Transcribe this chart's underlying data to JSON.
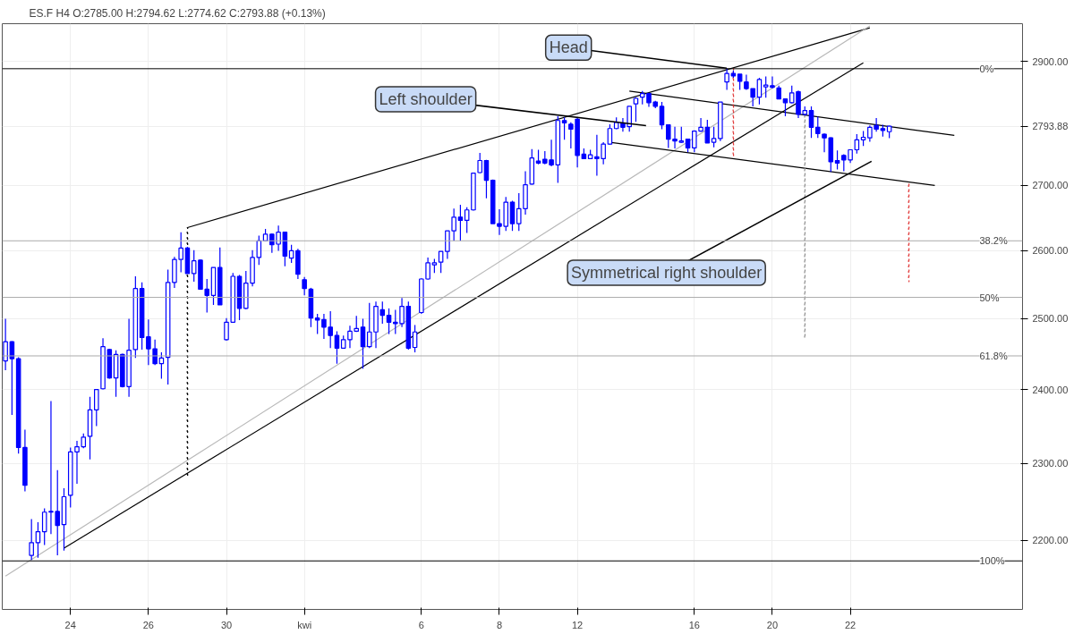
{
  "chart_data": {
    "type": "candlestick",
    "title": "ES.F  H4  O:2785.00  H:2794.62  L:2774.62  C:2793.88  (+0.13%)",
    "color": "#0000ff",
    "categories": [
      null,
      null,
      null,
      null,
      null,
      null,
      null,
      null,
      null,
      null,
      "24",
      null,
      null,
      null,
      null,
      null,
      null,
      null,
      null,
      null,
      null,
      null,
      "26",
      null,
      null,
      null,
      null,
      null,
      null,
      null,
      null,
      null,
      null,
      null,
      "30",
      null,
      null,
      null,
      null,
      null,
      null,
      null,
      null,
      null,
      null,
      null,
      "kwi",
      null,
      null,
      null,
      null,
      null,
      null,
      null,
      null,
      null,
      null,
      null,
      null,
      null,
      null,
      null,
      null,
      null,
      "6",
      null,
      null,
      null,
      null,
      null,
      null,
      null,
      null,
      null,
      null,
      null,
      "8",
      null,
      null,
      null,
      null,
      null,
      null,
      null,
      null,
      null,
      null,
      null,
      "12",
      null,
      null,
      null,
      null,
      null,
      null,
      null,
      null,
      null,
      null,
      null,
      null,
      null,
      null,
      null,
      null,
      null,
      "16",
      null,
      null,
      null,
      null,
      null,
      null,
      null,
      null,
      null,
      null,
      null,
      "20",
      null,
      null,
      null,
      null,
      null,
      null,
      null,
      null,
      null,
      null,
      null,
      "22",
      null,
      null,
      null,
      null,
      null,
      null,
      null,
      null,
      null,
      null,
      null,
      null,
      null,
      null,
      null,
      null,
      null,
      null,
      null,
      null,
      null,
      null,
      null,
      null,
      null,
      null
    ],
    "ohlc": [
      [
        2440,
        2500,
        2427,
        2467
      ],
      [
        2467,
        2468,
        2365,
        2443
      ],
      [
        2443,
        2445,
        2313,
        2321
      ],
      [
        2321,
        2345,
        2263,
        2271
      ],
      [
        2181,
        2227,
        2175,
        2197
      ],
      [
        2197,
        2223,
        2178,
        2211
      ],
      [
        2211,
        2241,
        2194,
        2236
      ],
      [
        2236,
        2384,
        2208,
        2237
      ],
      [
        2237,
        2291,
        2181,
        2219
      ],
      [
        2220,
        2267,
        2187,
        2256
      ],
      [
        2258,
        2321,
        2242,
        2315
      ],
      [
        2315,
        2330,
        2273,
        2322
      ],
      [
        2322,
        2340,
        2320,
        2335
      ],
      [
        2336,
        2390,
        2305,
        2372
      ],
      [
        2372,
        2400,
        2350,
        2400
      ],
      [
        2401,
        2472,
        2400,
        2460
      ],
      [
        2456,
        2457,
        2415,
        2416
      ],
      [
        2416,
        2455,
        2390,
        2449
      ],
      [
        2449,
        2450,
        2403,
        2404
      ],
      [
        2404,
        2500,
        2390,
        2455
      ],
      [
        2456,
        2562,
        2444,
        2544
      ],
      [
        2544,
        2553,
        2456,
        2473
      ],
      [
        2474,
        2499,
        2434,
        2457
      ],
      [
        2457,
        2470,
        2434,
        2436
      ],
      [
        2436,
        2452,
        2415,
        2444
      ],
      [
        2445,
        2572,
        2407,
        2553
      ],
      [
        2553,
        2591,
        2545,
        2587
      ],
      [
        2587,
        2628,
        2568,
        2604
      ],
      [
        2604,
        2606,
        2566,
        2566
      ],
      [
        2566,
        2601,
        2554,
        2585
      ],
      [
        2586,
        2587,
        2543,
        2543
      ],
      [
        2543,
        2558,
        2509,
        2534
      ],
      [
        2534,
        2575,
        2520,
        2575
      ],
      [
        2575,
        2605,
        2520,
        2520
      ],
      [
        2470,
        2501,
        2469,
        2495
      ],
      [
        2495,
        2567,
        2494,
        2562
      ],
      [
        2562,
        2564,
        2498,
        2515
      ],
      [
        2515,
        2570,
        2514,
        2552
      ],
      [
        2552,
        2601,
        2547,
        2590
      ],
      [
        2590,
        2623,
        2579,
        2615
      ],
      [
        2615,
        2633,
        2614,
        2625
      ],
      [
        2625,
        2626,
        2597,
        2609
      ],
      [
        2610,
        2638,
        2600,
        2628
      ],
      [
        2628,
        2629,
        2577,
        2592
      ],
      [
        2589,
        2609,
        2582,
        2600
      ],
      [
        2600,
        2603,
        2558,
        2565
      ],
      [
        2557,
        2561,
        2534,
        2544
      ],
      [
        2543,
        2545,
        2488,
        2501
      ],
      [
        2501,
        2507,
        2478,
        2498
      ],
      [
        2499,
        2507,
        2471,
        2488
      ],
      [
        2488,
        2511,
        2458,
        2476
      ],
      [
        2476,
        2482,
        2436,
        2458
      ],
      [
        2458,
        2476,
        2458,
        2470
      ],
      [
        2470,
        2490,
        2458,
        2482
      ],
      [
        2482,
        2504,
        2481,
        2486
      ],
      [
        2488,
        2500,
        2429,
        2460
      ],
      [
        2460,
        2523,
        2458,
        2481
      ],
      [
        2481,
        2525,
        2458,
        2518
      ],
      [
        2513,
        2525,
        2493,
        2505
      ],
      [
        2505,
        2515,
        2478,
        2495
      ],
      [
        2495,
        2513,
        2478,
        2493
      ],
      [
        2493,
        2530,
        2488,
        2518
      ],
      [
        2518,
        2525,
        2456,
        2458
      ],
      [
        2459,
        2491,
        2452,
        2481
      ],
      [
        2509,
        2559,
        2507,
        2558
      ],
      [
        2558,
        2590,
        2557,
        2582
      ],
      [
        2579,
        2588,
        2567,
        2582
      ],
      [
        2583,
        2599,
        2567,
        2599
      ],
      [
        2599,
        2630,
        2588,
        2630
      ],
      [
        2630,
        2664,
        2615,
        2651
      ],
      [
        2651,
        2670,
        2615,
        2646
      ],
      [
        2646,
        2666,
        2627,
        2662
      ],
      [
        2662,
        2720,
        2661,
        2719
      ],
      [
        2720,
        2751,
        2719,
        2739
      ],
      [
        2739,
        2740,
        2680,
        2708
      ],
      [
        2708,
        2709,
        2641,
        2641
      ],
      [
        2641,
        2663,
        2624,
        2637
      ],
      [
        2637,
        2682,
        2630,
        2674
      ],
      [
        2674,
        2676,
        2630,
        2641
      ],
      [
        2641,
        2688,
        2630,
        2664
      ],
      [
        2664,
        2722,
        2655,
        2701
      ],
      [
        2702,
        2757,
        2701,
        2743
      ],
      [
        2738,
        2756,
        2733,
        2735
      ],
      [
        2741,
        2754,
        2733,
        2735
      ],
      [
        2740,
        2772,
        2730,
        2732
      ],
      [
        2732,
        2810,
        2704,
        2803
      ],
      [
        2803,
        2808,
        2772,
        2799
      ],
      [
        2797,
        2800,
        2758,
        2789
      ],
      [
        2805,
        2807,
        2728,
        2747
      ],
      [
        2749,
        2758,
        2741,
        2742
      ],
      [
        2742,
        2756,
        2741,
        2748
      ],
      [
        2745,
        2780,
        2715,
        2742
      ],
      [
        2742,
        2768,
        2733,
        2765
      ],
      [
        2765,
        2797,
        2764,
        2790
      ],
      [
        2790,
        2808,
        2789,
        2800
      ],
      [
        2799,
        2807,
        2785,
        2792
      ],
      [
        2793,
        2826,
        2785,
        2826
      ],
      [
        2830,
        2841,
        2801,
        2839
      ],
      [
        2841,
        2851,
        2829,
        2847
      ],
      [
        2847,
        2848,
        2825,
        2832
      ],
      [
        2833,
        2835,
        2823,
        2826
      ],
      [
        2826,
        2833,
        2789,
        2796
      ],
      [
        2796,
        2797,
        2759,
        2773
      ],
      [
        2773,
        2793,
        2758,
        2770
      ],
      [
        2768,
        2793,
        2767,
        2770
      ],
      [
        2773,
        2774,
        2752,
        2759
      ],
      [
        2759,
        2787,
        2752,
        2786
      ],
      [
        2786,
        2807,
        2785,
        2792
      ],
      [
        2792,
        2804,
        2767,
        2767
      ],
      [
        2768,
        2793,
        2760,
        2774
      ],
      [
        2774,
        2833,
        2770,
        2833
      ],
      [
        2866,
        2889,
        2853,
        2880
      ],
      [
        2880,
        2885,
        2873,
        2876
      ],
      [
        2879,
        2879,
        2853,
        2867
      ],
      [
        2866,
        2878,
        2853,
        2855
      ],
      [
        2855,
        2855,
        2826,
        2841
      ],
      [
        2841,
        2873,
        2829,
        2870
      ],
      [
        2858,
        2875,
        2840,
        2861
      ],
      [
        2860,
        2875,
        2855,
        2857
      ],
      [
        2856,
        2860,
        2838,
        2838
      ],
      [
        2838,
        2839,
        2810,
        2832
      ],
      [
        2832,
        2860,
        2831,
        2848
      ],
      [
        2850,
        2852,
        2807,
        2813
      ],
      [
        2813,
        2826,
        2811,
        2819
      ],
      [
        2819,
        2826,
        2775,
        2792
      ],
      [
        2792,
        2809,
        2775,
        2782
      ],
      [
        2781,
        2782,
        2752,
        2775
      ],
      [
        2775,
        2776,
        2721,
        2737
      ],
      [
        2739,
        2755,
        2725,
        2735
      ],
      [
        2747,
        2749,
        2722,
        2740
      ],
      [
        2740,
        2756,
        2735,
        2756
      ],
      [
        2756,
        2781,
        2750,
        2772
      ],
      [
        2772,
        2786,
        2762,
        2776
      ],
      [
        2775,
        2795,
        2769,
        2792
      ],
      [
        2795,
        2807,
        2785,
        2789
      ],
      [
        2790,
        2796,
        2777,
        2787
      ],
      [
        2785,
        2794.62,
        2774.62,
        2793.88
      ],
      null,
      null,
      null,
      null,
      null,
      null,
      null,
      null,
      null,
      null,
      null,
      null,
      null,
      null,
      null,
      null,
      null,
      null,
      null,
      null
    ],
    "series": [
      {
        "type": "line",
        "color": "#000000",
        "line_style": "solid",
        "values": [
          null,
          null,
          null,
          null,
          null,
          null,
          null,
          null,
          null,
          null,
          null,
          null,
          null,
          null,
          null,
          null,
          null,
          null,
          null,
          null,
          null,
          null,
          null,
          null,
          null,
          null,
          null,
          null,
          2635,
          null,
          null,
          null,
          null,
          null,
          null,
          null,
          null,
          null,
          null,
          null,
          null,
          null,
          null,
          null,
          null,
          null,
          null,
          null,
          null,
          null,
          null,
          null,
          null,
          null,
          null,
          null,
          null,
          null,
          null,
          null,
          null,
          null,
          null,
          null,
          null,
          null,
          null,
          null,
          null,
          null,
          null,
          null,
          null,
          null,
          null,
          null,
          null,
          null,
          null,
          null,
          null,
          null,
          null,
          null,
          null,
          null,
          null,
          null,
          null,
          null,
          null,
          null,
          null,
          null,
          null,
          null,
          null,
          null,
          null,
          null,
          null,
          null,
          null,
          null,
          null,
          null,
          null,
          null,
          null,
          null,
          null,
          null,
          null,
          null,
          null,
          null,
          null,
          null,
          null,
          null,
          null,
          null,
          null,
          null,
          null,
          null,
          null,
          null,
          null,
          null,
          null,
          null,
          null,
          2957,
          null,
          null,
          null,
          null,
          null,
          null,
          null,
          null,
          null,
          null,
          null,
          null,
          null,
          null,
          null,
          null,
          null,
          null,
          null,
          null,
          null,
          null,
          null
        ]
      },
      {
        "type": "line",
        "color": "#000000",
        "line_style": "solid",
        "values": [
          null,
          null,
          null,
          null,
          null,
          null,
          null,
          null,
          null,
          2190,
          null,
          null,
          null,
          null,
          null,
          null,
          null,
          null,
          null,
          null,
          null,
          null,
          null,
          null,
          null,
          null,
          null,
          null,
          null,
          null,
          null,
          null,
          null,
          null,
          null,
          null,
          null,
          null,
          null,
          null,
          null,
          null,
          null,
          null,
          null,
          null,
          null,
          null,
          null,
          null,
          null,
          null,
          null,
          null,
          null,
          null,
          null,
          null,
          null,
          null,
          null,
          null,
          null,
          null,
          null,
          null,
          null,
          null,
          null,
          null,
          null,
          null,
          null,
          null,
          null,
          null,
          null,
          null,
          null,
          null,
          null,
          null,
          null,
          null,
          null,
          null,
          null,
          null,
          null,
          null,
          null,
          null,
          null,
          null,
          null,
          null,
          null,
          null,
          null,
          null,
          null,
          null,
          null,
          null,
          null,
          null,
          null,
          null,
          null,
          null,
          null,
          null,
          null,
          null,
          null,
          null,
          null,
          null,
          null,
          null,
          null,
          null,
          null,
          null,
          null,
          null,
          null,
          null,
          null,
          null,
          null,
          null,
          2898,
          null,
          null,
          null,
          null,
          null,
          null,
          null,
          null,
          null,
          null,
          null,
          null,
          null,
          null,
          null,
          null,
          null,
          null,
          null,
          null,
          null,
          null,
          null,
          null
        ]
      },
      {
        "type": "line",
        "color": "#b8b8b8",
        "line_style": "solid",
        "values": [
          2155,
          null,
          null,
          null,
          null,
          null,
          null,
          null,
          null,
          null,
          null,
          null,
          null,
          null,
          null,
          null,
          null,
          null,
          null,
          null,
          null,
          null,
          null,
          null,
          null,
          null,
          null,
          null,
          null,
          null,
          null,
          null,
          null,
          null,
          null,
          null,
          null,
          null,
          null,
          null,
          null,
          null,
          null,
          null,
          null,
          null,
          null,
          null,
          null,
          null,
          null,
          null,
          null,
          null,
          null,
          null,
          null,
          null,
          null,
          null,
          null,
          null,
          null,
          null,
          null,
          null,
          null,
          null,
          null,
          null,
          null,
          null,
          null,
          null,
          null,
          null,
          null,
          null,
          null,
          null,
          null,
          null,
          null,
          null,
          null,
          null,
          null,
          null,
          null,
          null,
          null,
          null,
          null,
          null,
          null,
          null,
          null,
          null,
          null,
          null,
          null,
          null,
          null,
          null,
          null,
          null,
          null,
          null,
          null,
          null,
          null,
          null,
          null,
          null,
          null,
          null,
          null,
          null,
          null,
          null,
          null,
          null,
          null,
          null,
          null,
          null,
          null,
          null,
          null,
          null,
          null,
          null,
          null,
          2960,
          null,
          null,
          null,
          null,
          null,
          null,
          null,
          null,
          null,
          null,
          null,
          null,
          null,
          null,
          null,
          null,
          null,
          null,
          null,
          null,
          null,
          null,
          null
        ]
      },
      {
        "type": "line",
        "color": "#000000",
        "line_style": "solid",
        "values": [
          null,
          null,
          null,
          null,
          null,
          null,
          null,
          null,
          null,
          null,
          null,
          null,
          null,
          null,
          null,
          null,
          null,
          null,
          null,
          null,
          null,
          null,
          null,
          null,
          null,
          null,
          null,
          null,
          null,
          null,
          null,
          null,
          null,
          null,
          null,
          null,
          null,
          null,
          null,
          null,
          null,
          null,
          null,
          null,
          null,
          null,
          null,
          null,
          null,
          null,
          null,
          null,
          null,
          null,
          null,
          null,
          null,
          null,
          null,
          null,
          null,
          null,
          null,
          null,
          null,
          null,
          null,
          null,
          null,
          null,
          null,
          null,
          null,
          null,
          null,
          null,
          null,
          null,
          null,
          null,
          null,
          null,
          null,
          null,
          null,
          null,
          null,
          null,
          null,
          null,
          null,
          null,
          null,
          null,
          null,
          null,
          2851,
          null,
          null,
          null,
          null,
          null,
          null,
          null,
          null,
          null,
          null,
          null,
          null,
          null,
          null,
          null,
          null,
          null,
          null,
          null,
          null,
          null,
          null,
          null,
          null,
          null,
          null,
          null,
          null,
          null,
          null,
          null,
          null,
          null,
          null,
          null,
          null,
          null,
          null,
          null,
          null,
          null,
          null,
          null,
          null,
          null,
          null,
          null,
          null,
          null,
          2779,
          null,
          null,
          null,
          null,
          null,
          null,
          null,
          null,
          null,
          null
        ]
      },
      {
        "type": "line",
        "color": "#000000",
        "line_style": "solid",
        "values": [
          null,
          null,
          null,
          null,
          null,
          null,
          null,
          null,
          null,
          null,
          null,
          null,
          null,
          null,
          null,
          null,
          null,
          null,
          null,
          null,
          null,
          null,
          null,
          null,
          null,
          null,
          null,
          null,
          null,
          null,
          null,
          null,
          null,
          null,
          null,
          null,
          null,
          null,
          null,
          null,
          null,
          null,
          null,
          null,
          null,
          null,
          null,
          null,
          null,
          null,
          null,
          null,
          null,
          null,
          null,
          null,
          null,
          null,
          null,
          null,
          null,
          null,
          null,
          null,
          null,
          null,
          null,
          null,
          null,
          null,
          null,
          null,
          null,
          null,
          null,
          null,
          null,
          null,
          null,
          null,
          null,
          null,
          null,
          null,
          null,
          null,
          null,
          null,
          null,
          null,
          null,
          null,
          null,
          2768,
          null,
          null,
          null,
          null,
          null,
          null,
          null,
          null,
          null,
          null,
          null,
          null,
          null,
          null,
          null,
          null,
          null,
          null,
          null,
          null,
          null,
          null,
          null,
          null,
          null,
          null,
          null,
          null,
          null,
          null,
          null,
          null,
          null,
          null,
          null,
          null,
          null,
          null,
          null,
          null,
          null,
          null,
          null,
          null,
          null,
          null,
          null,
          null,
          null,
          2700,
          null,
          null,
          null,
          null,
          null,
          null,
          null,
          null,
          null,
          null,
          null,
          null,
          null
        ]
      },
      {
        "type": "bar",
        "line_style": "dotted",
        "base": [
          null,
          null,
          null,
          null,
          null,
          null,
          null,
          null,
          null,
          null,
          null,
          null,
          null,
          null,
          null,
          null,
          null,
          null,
          null,
          null,
          null,
          null,
          null,
          null,
          null,
          null,
          null,
          null,
          2282,
          null,
          null,
          null,
          null,
          null,
          null,
          null,
          null,
          null,
          null,
          null,
          null,
          null,
          null,
          null,
          null,
          null,
          null,
          null,
          null,
          null,
          null,
          null,
          null,
          null,
          null,
          null,
          null,
          null,
          null,
          null,
          null,
          null,
          null,
          null,
          null,
          null,
          null,
          null,
          null,
          null,
          null,
          null,
          null,
          null,
          null,
          null,
          null,
          null,
          null,
          null,
          null,
          null,
          null,
          null,
          null,
          null,
          null,
          null,
          null,
          null,
          null,
          null,
          null,
          null,
          null,
          null,
          null,
          null,
          null,
          null,
          null,
          null,
          null,
          null,
          null,
          null,
          null,
          null,
          null,
          null,
          null,
          null,
          2745,
          null,
          null,
          null,
          null,
          null,
          null,
          null,
          null,
          null,
          null,
          2472,
          null,
          null,
          null,
          null,
          null,
          null,
          null,
          null,
          null,
          null,
          null,
          null,
          null,
          null,
          null,
          2554,
          null,
          null,
          null,
          null,
          null,
          null,
          null,
          null,
          null,
          null,
          null,
          null,
          null,
          null,
          null,
          null,
          null
        ],
        "values": [
          null,
          null,
          null,
          null,
          null,
          null,
          null,
          null,
          null,
          null,
          null,
          null,
          null,
          null,
          null,
          null,
          null,
          null,
          null,
          null,
          null,
          null,
          null,
          null,
          null,
          null,
          null,
          null,
          353,
          null,
          null,
          null,
          null,
          null,
          null,
          null,
          null,
          null,
          null,
          null,
          null,
          null,
          null,
          null,
          null,
          null,
          null,
          null,
          null,
          null,
          null,
          null,
          null,
          null,
          null,
          null,
          null,
          null,
          null,
          null,
          null,
          null,
          null,
          null,
          null,
          null,
          null,
          null,
          null,
          null,
          null,
          null,
          null,
          null,
          null,
          null,
          null,
          null,
          null,
          null,
          null,
          null,
          null,
          null,
          null,
          null,
          null,
          null,
          null,
          null,
          null,
          null,
          null,
          null,
          null,
          null,
          null,
          null,
          null,
          null,
          null,
          null,
          null,
          null,
          null,
          null,
          null,
          null,
          null,
          null,
          null,
          null,
          143,
          null,
          null,
          null,
          null,
          null,
          null,
          null,
          null,
          null,
          null,
          341,
          null,
          null,
          null,
          null,
          null,
          null,
          null,
          null,
          null,
          null,
          null,
          null,
          null,
          null,
          null,
          148,
          null,
          null,
          null,
          null,
          null,
          null,
          null,
          null,
          null,
          null,
          null,
          null,
          null,
          null,
          null,
          null,
          null
        ],
        "colors": [
          null,
          null,
          null,
          null,
          null,
          null,
          null,
          null,
          null,
          null,
          null,
          null,
          null,
          null,
          null,
          null,
          null,
          null,
          null,
          null,
          null,
          null,
          null,
          null,
          null,
          null,
          null,
          null,
          "#000000",
          null,
          null,
          null,
          null,
          null,
          null,
          null,
          null,
          null,
          null,
          null,
          null,
          null,
          null,
          null,
          null,
          null,
          null,
          null,
          null,
          null,
          null,
          null,
          null,
          null,
          null,
          null,
          null,
          null,
          null,
          null,
          null,
          null,
          null,
          null,
          null,
          null,
          null,
          null,
          null,
          null,
          null,
          null,
          null,
          null,
          null,
          null,
          null,
          null,
          null,
          null,
          null,
          null,
          null,
          null,
          null,
          null,
          null,
          null,
          null,
          null,
          null,
          null,
          null,
          null,
          null,
          null,
          null,
          null,
          null,
          null,
          null,
          null,
          null,
          null,
          null,
          null,
          null,
          null,
          null,
          null,
          null,
          null,
          "#e03030",
          null,
          null,
          null,
          null,
          null,
          null,
          null,
          null,
          null,
          null,
          "#888888",
          null,
          null,
          null,
          null,
          null,
          null,
          null,
          null,
          null,
          null,
          null,
          null,
          null,
          null,
          null,
          "#e03030",
          null,
          null,
          null,
          null,
          null,
          null,
          null,
          null,
          null,
          null,
          null,
          null,
          null,
          null,
          null,
          null,
          null
        ]
      }
    ],
    "ref_lines": [
      {
        "axis": "y",
        "value": 2888,
        "color": "#000000"
      },
      {
        "axis": "y",
        "value": 2615,
        "color": "#aaaaaa"
      },
      {
        "axis": "y",
        "value": 2531,
        "color": "#aaaaaa"
      },
      {
        "axis": "y",
        "value": 2447,
        "color": "#aaaaaa"
      },
      {
        "axis": "y",
        "value": 2174,
        "color": "#000000"
      }
    ],
    "annotations": [
      {
        "text": "Head",
        "y": 2889
      },
      "Left shoulder",
      "Symmetrical right shoulder",
      {
        "text": "0%",
        "y": 2888
      },
      {
        "text": "38.2%",
        "y": 2615
      },
      {
        "text": "50%",
        "y": 2531
      },
      {
        "text": "61.8%",
        "y": 2447
      },
      {
        "text": "100%",
        "y": 2174
      }
    ],
    "log": "y",
    "ylim": [
      2114,
      2964
    ],
    "yticks": [
      {
        "value": 2200,
        "label": "2200.00"
      },
      {
        "value": 2300,
        "label": "2300.00"
      },
      {
        "value": 2400,
        "label": "2400.00"
      },
      {
        "value": 2500,
        "label": "2500.00"
      },
      {
        "value": 2600,
        "label": "2600.00"
      },
      {
        "value": 2700,
        "label": "2700.00"
      },
      {
        "value": 2793.88,
        "label": "2793.88"
      },
      {
        "value": 2900,
        "label": "2900.00"
      }
    ],
    "grid": true
  }
}
